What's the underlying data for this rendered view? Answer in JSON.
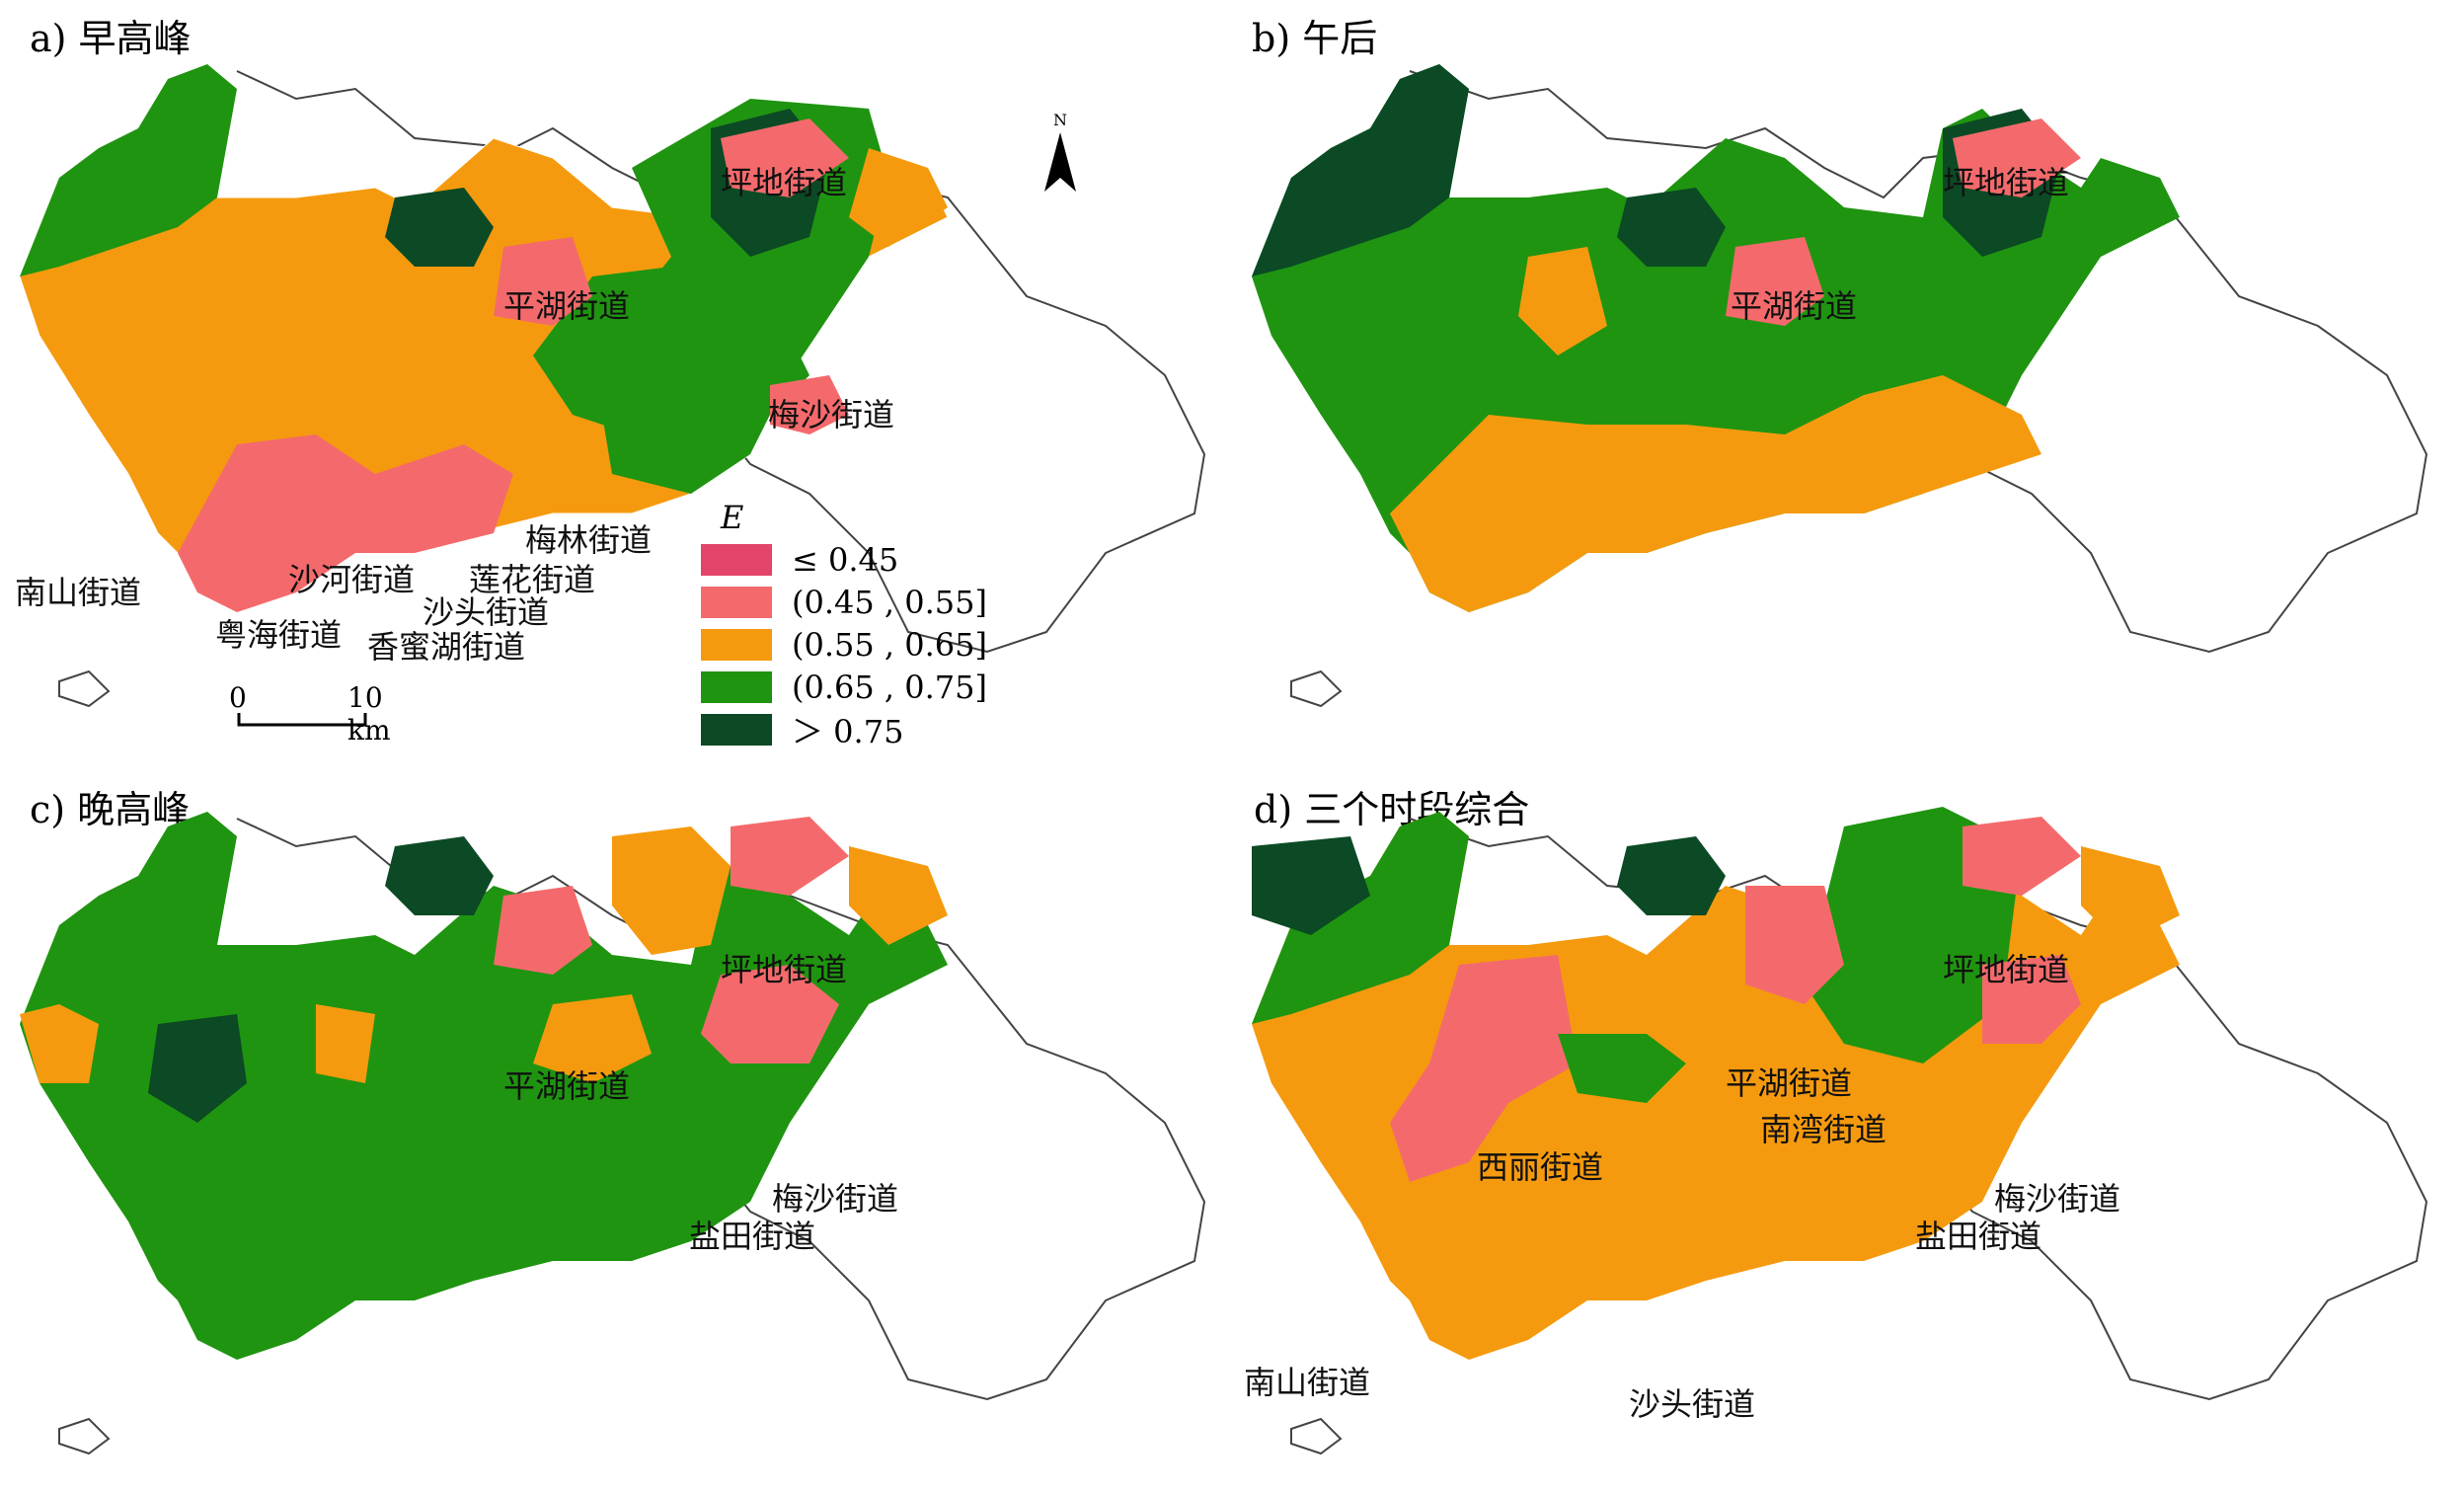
{
  "panels": [
    {
      "title": "a) 早高峰",
      "labels": [
        "坪地街道",
        "平湖街道",
        "梅沙街道",
        "梅林街道",
        "莲花街道",
        "沙河街道",
        "沙头街道",
        "南山街道",
        "粤海街道",
        "香蜜湖街道"
      ]
    },
    {
      "title": "b) 午后",
      "labels": [
        "坪地街道",
        "平湖街道"
      ]
    },
    {
      "title": "c) 晚高峰",
      "labels": [
        "坪地街道",
        "平湖街道",
        "梅沙街道",
        "盐田街道"
      ]
    },
    {
      "title": "d) 三个时段综合",
      "labels": [
        "坪地街道",
        "平湖街道",
        "南湾街道",
        "西丽街道",
        "梅沙街道",
        "盐田街道",
        "南山街道",
        "沙头街道"
      ]
    }
  ],
  "legend": {
    "title": "E",
    "items": [
      {
        "label": "≤ 0.45",
        "color": "#e2446a"
      },
      {
        "label": "(0.45 , 0.55]",
        "color": "#f46a6c"
      },
      {
        "label": "(0.55 , 0.65]",
        "color": "#f59a0e"
      },
      {
        "label": "(0.65 , 0.75]",
        "color": "#1f9410"
      },
      {
        "label": "＞ 0.75",
        "color": "#0b4a24"
      }
    ]
  },
  "scale": {
    "start": "0",
    "end": "10 km"
  },
  "north": "N"
}
